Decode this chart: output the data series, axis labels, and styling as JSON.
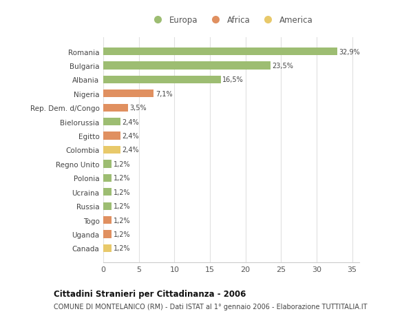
{
  "categories": [
    "Canada",
    "Uganda",
    "Togo",
    "Russia",
    "Ucraina",
    "Polonia",
    "Regno Unito",
    "Colombia",
    "Egitto",
    "Bielorussia",
    "Rep. Dem. d/Congo",
    "Nigeria",
    "Albania",
    "Bulgaria",
    "Romania"
  ],
  "values": [
    1.2,
    1.2,
    1.2,
    1.2,
    1.2,
    1.2,
    1.2,
    2.4,
    2.4,
    2.4,
    3.5,
    7.1,
    16.5,
    23.5,
    32.9
  ],
  "labels": [
    "1,2%",
    "1,2%",
    "1,2%",
    "1,2%",
    "1,2%",
    "1,2%",
    "1,2%",
    "2,4%",
    "2,4%",
    "2,4%",
    "3,5%",
    "7,1%",
    "16,5%",
    "23,5%",
    "32,9%"
  ],
  "colors": [
    "#e8c96a",
    "#e09060",
    "#e09060",
    "#9dbd72",
    "#9dbd72",
    "#9dbd72",
    "#9dbd72",
    "#e8c96a",
    "#e09060",
    "#9dbd72",
    "#e09060",
    "#e09060",
    "#9dbd72",
    "#9dbd72",
    "#9dbd72"
  ],
  "continent_colors": {
    "Europa": "#9dbd72",
    "Africa": "#e09060",
    "America": "#e8c96a"
  },
  "title": "Cittadini Stranieri per Cittadinanza - 2006",
  "subtitle": "COMUNE DI MONTELANICO (RM) - Dati ISTAT al 1° gennaio 2006 - Elaborazione TUTTITALIA.IT",
  "xlim": [
    0,
    36
  ],
  "xticks": [
    0,
    5,
    10,
    15,
    20,
    25,
    30,
    35
  ],
  "bg_color": "#ffffff",
  "grid_color": "#e0e0e0",
  "bar_height": 0.55
}
